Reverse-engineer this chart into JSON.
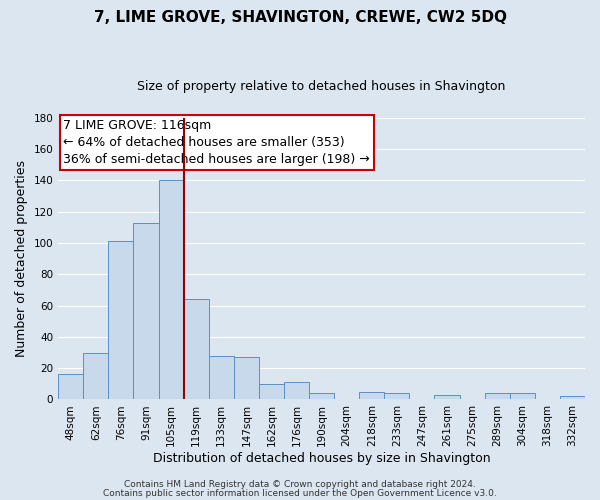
{
  "title": "7, LIME GROVE, SHAVINGTON, CREWE, CW2 5DQ",
  "subtitle": "Size of property relative to detached houses in Shavington",
  "xlabel": "Distribution of detached houses by size in Shavington",
  "ylabel": "Number of detached properties",
  "bin_labels": [
    "48sqm",
    "62sqm",
    "76sqm",
    "91sqm",
    "105sqm",
    "119sqm",
    "133sqm",
    "147sqm",
    "162sqm",
    "176sqm",
    "190sqm",
    "204sqm",
    "218sqm",
    "233sqm",
    "247sqm",
    "261sqm",
    "275sqm",
    "289sqm",
    "304sqm",
    "318sqm",
    "332sqm"
  ],
  "bar_heights": [
    16,
    30,
    101,
    113,
    140,
    64,
    28,
    27,
    10,
    11,
    4,
    0,
    5,
    4,
    0,
    3,
    0,
    4,
    4,
    0,
    2
  ],
  "bar_color": "#c9d9ec",
  "bar_edge_color": "#5b8fc9",
  "vline_color": "#990000",
  "ylim": [
    0,
    180
  ],
  "yticks": [
    0,
    20,
    40,
    60,
    80,
    100,
    120,
    140,
    160,
    180
  ],
  "annotation_title": "7 LIME GROVE: 116sqm",
  "annotation_line1": "← 64% of detached houses are smaller (353)",
  "annotation_line2": "36% of semi-detached houses are larger (198) →",
  "annotation_box_color": "#ffffff",
  "annotation_box_edge": "#cc0000",
  "footer1": "Contains HM Land Registry data © Crown copyright and database right 2024.",
  "footer2": "Contains public sector information licensed under the Open Government Licence v3.0.",
  "background_color": "#dce6f0",
  "grid_color": "#ffffff",
  "title_fontsize": 11,
  "subtitle_fontsize": 9,
  "ylabel_fontsize": 9,
  "xlabel_fontsize": 9,
  "tick_fontsize": 7.5,
  "ann_fontsize": 9,
  "footer_fontsize": 6.5
}
